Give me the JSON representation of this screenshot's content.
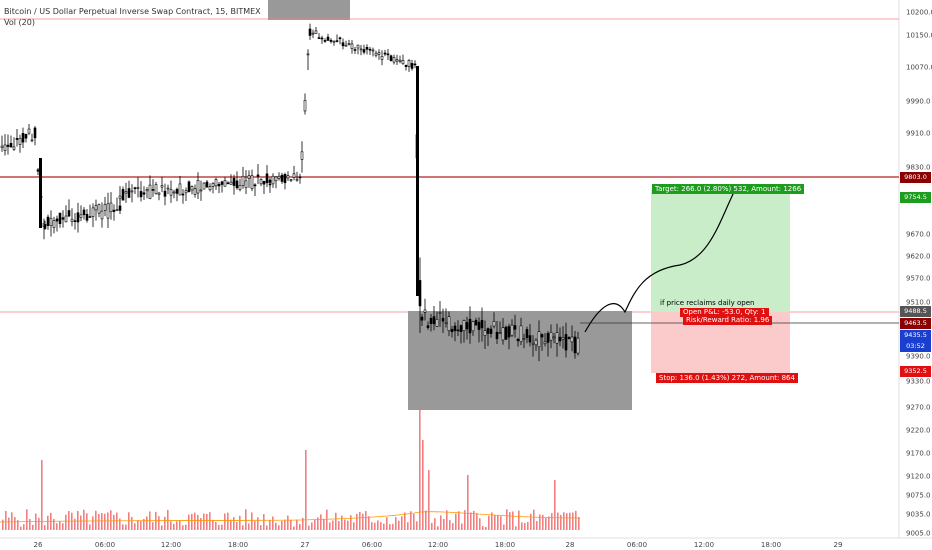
{
  "legend": {
    "title": "Bitcoin / US Dollar Perpetual Inverse Swap Contract, 15, BITMEX",
    "volume": "Vol (20)"
  },
  "price_axis": {
    "ticks": [
      "10200.0",
      "10150.0",
      "10070.0",
      "9990.0",
      "9910.0",
      "9830.0",
      "9670.0",
      "9620.0",
      "9570.0",
      "9510.0",
      "9390.0",
      "9330.0",
      "9270.0",
      "9220.0",
      "9170.0",
      "9120.0",
      "9075.0",
      "9035.0",
      "9005.0"
    ],
    "tags": [
      {
        "label": "9803.0",
        "color": "#8b0000"
      },
      {
        "label": "9754.5",
        "color": "#1e9c1e"
      },
      {
        "label": "9488.5",
        "color": "#555555"
      },
      {
        "label": "9463.5",
        "color": "#8b0000"
      },
      {
        "label": "9435.5",
        "color": "#1a3fd0"
      },
      {
        "label": "03:52",
        "color": "#1a3fd0"
      },
      {
        "label": "9352.5",
        "color": "#e01010"
      }
    ]
  },
  "time_axis": {
    "labels": [
      "26",
      "06:00",
      "12:00",
      "18:00",
      "27",
      "06:00",
      "12:00",
      "18:00",
      "28",
      "06:00",
      "12:00",
      "18:00",
      "29"
    ]
  },
  "position": {
    "target_label": "Target: 266.0 (2.80%) 532, Amount: 1266",
    "stop_label": "Stop: 136.0 (1.43%) 272, Amount: 864",
    "open_pnl": "Open P&L: -53.0, Qty: 1",
    "risk_reward": "Risk/Reward Ratio: 1.96",
    "target_color": "#1e9c1e",
    "stop_color": "#e01010"
  },
  "note": "if price reclaims daily open",
  "colors": {
    "resistance_line": "#b22222",
    "thin_line": "#f08080",
    "candle": "#000000",
    "volume": "#f08080"
  }
}
